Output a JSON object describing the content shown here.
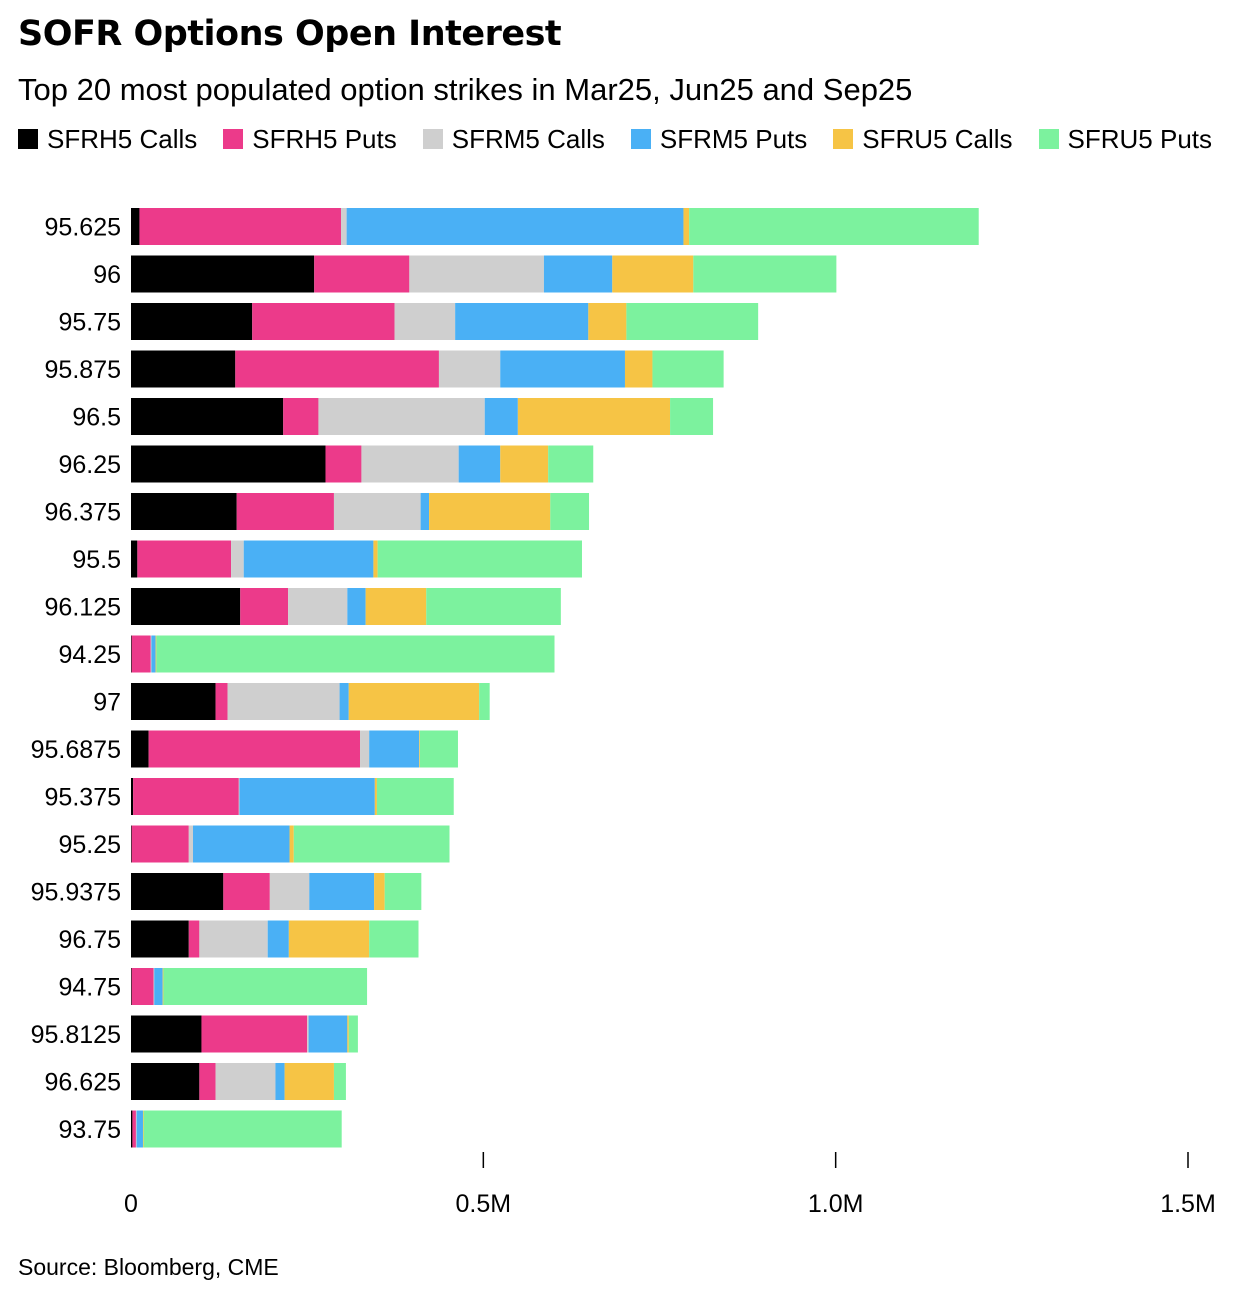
{
  "header": {
    "title": "SOFR Options Open Interest",
    "subtitle": "Top 20 most populated option strikes in Mar25, Jun25 and Sep25"
  },
  "footer": {
    "source": "Source: Bloomberg, CME"
  },
  "chart_data": {
    "type": "bar",
    "orientation": "horizontal",
    "stacked": true,
    "categories": [
      "95.625",
      "96",
      "95.75",
      "95.875",
      "96.5",
      "96.25",
      "96.375",
      "95.5",
      "96.125",
      "94.25",
      "97",
      "95.6875",
      "95.375",
      "95.25",
      "95.9375",
      "96.75",
      "94.75",
      "95.8125",
      "96.625",
      "93.75"
    ],
    "series": [
      {
        "name": "SFRH5 Calls",
        "color": "#000000",
        "values": [
          12000,
          260000,
          172000,
          148000,
          216000,
          276000,
          150000,
          9000,
          155000,
          1000,
          120000,
          25000,
          3000,
          1000,
          131000,
          82000,
          1000,
          100000,
          97000,
          2000
        ]
      },
      {
        "name": "SFRH5 Puts",
        "color": "#ec3a8a",
        "values": [
          286000,
          135000,
          202000,
          289000,
          50000,
          51000,
          138000,
          133000,
          68000,
          27000,
          17000,
          300000,
          150000,
          81000,
          66000,
          15000,
          31000,
          150000,
          23000,
          5000
        ]
      },
      {
        "name": "SFRM5 Calls",
        "color": "#cfcfcf",
        "values": [
          8000,
          191000,
          86000,
          87000,
          236000,
          138000,
          123000,
          18000,
          84000,
          1000,
          159000,
          13000,
          1000,
          6000,
          56000,
          97000,
          1000,
          2000,
          85000,
          1000
        ]
      },
      {
        "name": "SFRM5 Puts",
        "color": "#4ab0f5",
        "values": [
          478000,
          97000,
          189000,
          177000,
          47000,
          59000,
          12000,
          184000,
          26000,
          6000,
          13000,
          71000,
          192000,
          137000,
          92000,
          30000,
          12000,
          55000,
          13000,
          9000
        ]
      },
      {
        "name": "SFRU5 Calls",
        "color": "#f6c445",
        "values": [
          8000,
          115000,
          54000,
          39000,
          216000,
          68000,
          172000,
          6000,
          86000,
          1000,
          185000,
          1000,
          3000,
          6000,
          15000,
          114000,
          1000,
          2000,
          70000,
          1000
        ]
      },
      {
        "name": "SFRU5 Puts",
        "color": "#7cf29e",
        "values": [
          411000,
          203000,
          187000,
          101000,
          61000,
          64000,
          55000,
          290000,
          191000,
          565000,
          15000,
          54000,
          109000,
          221000,
          52000,
          70000,
          289000,
          13000,
          17000,
          281000
        ]
      }
    ],
    "xlim": [
      0,
      1500000
    ],
    "ticks": [
      {
        "value": 0,
        "label": "0"
      },
      {
        "value": 500000,
        "label": "0.5M"
      },
      {
        "value": 1000000,
        "label": "1.0M"
      },
      {
        "value": 1500000,
        "label": "1.5M"
      }
    ],
    "grid": false,
    "legend": "top"
  }
}
